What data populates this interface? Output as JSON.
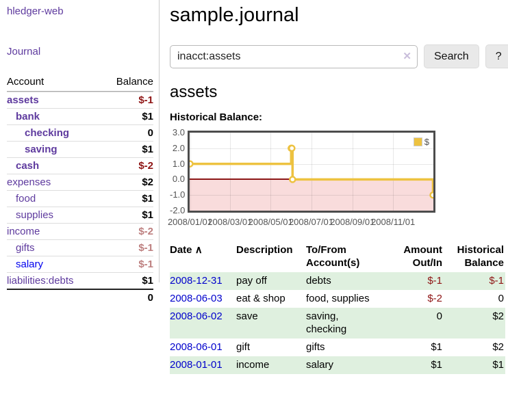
{
  "app": {
    "title": "hledger-web",
    "nav_journal": "Journal"
  },
  "sidebar": {
    "headers": {
      "account": "Account",
      "balance": "Balance"
    },
    "accounts": [
      {
        "name": "assets",
        "indent": 0,
        "bold": true,
        "balance": "$-1",
        "balance_style": "neg"
      },
      {
        "name": "bank",
        "indent": 1,
        "bold": true,
        "balance": "$1",
        "balance_style": "pos"
      },
      {
        "name": "checking",
        "indent": 2,
        "bold": true,
        "balance": "0",
        "balance_style": "pos"
      },
      {
        "name": "saving",
        "indent": 2,
        "bold": true,
        "balance": "$1",
        "balance_style": "pos"
      },
      {
        "name": "cash",
        "indent": 1,
        "bold": true,
        "balance": "$-2",
        "balance_style": "neg"
      },
      {
        "name": "expenses",
        "indent": 0,
        "bold": false,
        "balance": "$2",
        "balance_style": "pos"
      },
      {
        "name": "food",
        "indent": 1,
        "bold": false,
        "balance": "$1",
        "balance_style": "pos"
      },
      {
        "name": "supplies",
        "indent": 1,
        "bold": false,
        "balance": "$1",
        "balance_style": "pos"
      },
      {
        "name": "income",
        "indent": 0,
        "bold": false,
        "balance": "$-2",
        "balance_style": "negmuted"
      },
      {
        "name": "gifts",
        "indent": 1,
        "bold": false,
        "balance": "$-1",
        "balance_style": "negmuted"
      },
      {
        "name": "salary",
        "indent": 1,
        "bold": false,
        "balance": "$-1",
        "balance_style": "negmuted",
        "link_color": "blue"
      },
      {
        "name": "liabilities:debts",
        "indent": 0,
        "bold": false,
        "balance": "$1",
        "balance_style": "pos"
      }
    ],
    "total": "0"
  },
  "main": {
    "title": "sample.journal",
    "search": {
      "value": "inacct:assets",
      "clear_icon": "✕",
      "button_label": "Search",
      "help_label": "?"
    },
    "account_heading": "assets",
    "chart_label": "Historical Balance:"
  },
  "chart_data": {
    "type": "line",
    "title": "Historical Balance",
    "step": true,
    "series": [
      {
        "name": "$",
        "color": "#edc240",
        "points": [
          [
            "2008-01-01",
            1
          ],
          [
            "2008-06-01",
            2
          ],
          [
            "2008-06-02",
            2
          ],
          [
            "2008-06-03",
            0
          ],
          [
            "2008-12-31",
            -1
          ]
        ]
      }
    ],
    "x_ticks": [
      "2008/01/01",
      "2008/03/01",
      "2008/05/01",
      "2008/07/01",
      "2008/09/01",
      "2008/11/01"
    ],
    "y_ticks": [
      "3.0",
      "2.0",
      "1.0",
      "0.0",
      "-1.0",
      "-2.0"
    ],
    "ylim": [
      -2,
      3
    ],
    "xlim": [
      "2008-01-01",
      "2008-12-31"
    ],
    "grid": true,
    "legend_position": "top-right",
    "negative_region_color": "#f9dcdc",
    "zero_line_color": "#8c1717"
  },
  "register": {
    "headers": {
      "date": "Date",
      "date_sort_icon": "∧",
      "description": "Description",
      "tofrom_lines": [
        "To/From",
        "Account(s)"
      ],
      "amount_lines": [
        "Amount",
        "Out/In"
      ],
      "historical_lines": [
        "Historical",
        "Balance"
      ]
    },
    "rows": [
      {
        "date": "2008-12-31",
        "description": "pay off",
        "account_lines": [
          "debts"
        ],
        "amount": "$-1",
        "amount_neg": true,
        "historical": "$-1",
        "historical_neg": true,
        "shaded": true
      },
      {
        "date": "2008-06-03",
        "description": "eat & shop",
        "account_lines": [
          "food, supplies"
        ],
        "amount": "$-2",
        "amount_neg": true,
        "historical": "0",
        "historical_neg": false,
        "shaded": false
      },
      {
        "date": "2008-06-02",
        "description": "save",
        "account_lines": [
          "saving,",
          "checking"
        ],
        "amount": "0",
        "amount_neg": false,
        "historical": "$2",
        "historical_neg": false,
        "shaded": true
      },
      {
        "date": "2008-06-01",
        "description": "gift",
        "account_lines": [
          "gifts"
        ],
        "amount": "$1",
        "amount_neg": false,
        "historical": "$2",
        "historical_neg": false,
        "shaded": false
      },
      {
        "date": "2008-01-01",
        "description": "income",
        "account_lines": [
          "salary"
        ],
        "amount": "$1",
        "amount_neg": false,
        "historical": "$1",
        "historical_neg": false,
        "shaded": true
      }
    ]
  },
  "colors": {
    "link_purple": "#5e3a9e",
    "link_blue": "#0000ee",
    "date_link_blue": "#0000cc",
    "negative_dark_red": "#8e1414",
    "negative_muted_rose": "#bd7f7f",
    "shaded_row_green": "#dff0df",
    "series_gold": "#edc240",
    "chart_border": "#4c4c4c",
    "axis_text": "#545454"
  }
}
